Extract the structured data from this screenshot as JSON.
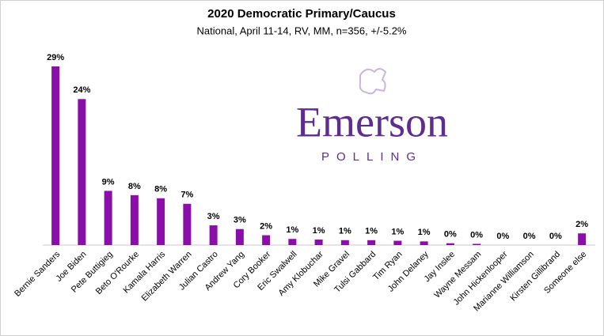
{
  "chart_data": {
    "type": "bar",
    "title": "2020 Democratic Primary/Caucus",
    "subtitle": "National, April 11-14, RV, MM, n=356, +/-5.2%",
    "logo": {
      "name": "Emerson",
      "tagline": "POLLING"
    },
    "color": "#8a0fa8",
    "categories": [
      "Bernie Sanders",
      "Joe Biden",
      "Pete Buttigieg",
      "Beto O'Rourke",
      "Kamala Harris",
      "Elizabeth Warren",
      "Julian Castro",
      "Andrew Yang",
      "Cory Booker",
      "Eric Swalwell",
      "Amy Klobuchar",
      "Mike Gravel",
      "Tulsi Gabbard",
      "Tim Ryan",
      "John Delaney",
      "Jay Inslee",
      "Wayne Messam",
      "John Hickenlooper",
      "Marianne Williamson",
      "Kirsten Gillibrand",
      "Someone else"
    ],
    "values": [
      29,
      23.7,
      8.8,
      8.1,
      7.6,
      6.7,
      3.2,
      2.6,
      1.6,
      1.0,
      0.9,
      0.8,
      0.8,
      0.7,
      0.6,
      0.3,
      0.2,
      0,
      0,
      0,
      1.9
    ],
    "value_labels": [
      "29%",
      "24%",
      "9%",
      "8%",
      "8%",
      "7%",
      "3%",
      "3%",
      "2%",
      "1%",
      "1%",
      "1%",
      "1%",
      "1%",
      "1%",
      "0%",
      "0%",
      "0%",
      "0%",
      "0%",
      "2%"
    ]
  }
}
